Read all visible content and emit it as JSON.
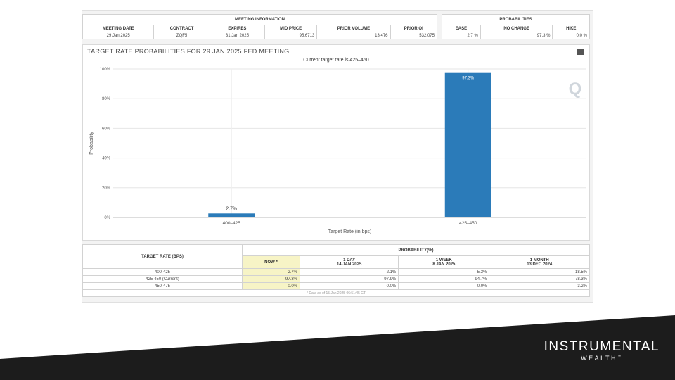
{
  "meeting_info": {
    "header": "MEETING INFORMATION",
    "columns": [
      "MEETING DATE",
      "CONTRACT",
      "EXPIRES",
      "MID PRICE",
      "PRIOR VOLUME",
      "PRIOR OI"
    ],
    "values": [
      "29 Jan 2025",
      "ZQF5",
      "31 Jan 2025",
      "95.6713",
      "13,476",
      "532,075"
    ]
  },
  "probabilities": {
    "header": "PROBABILITIES",
    "columns": [
      "EASE",
      "NO CHANGE",
      "HIKE"
    ],
    "values": [
      "2.7 %",
      "97.3 %",
      "0.0 %"
    ]
  },
  "chart_data": {
    "type": "bar",
    "title": "TARGET RATE PROBABILITIES FOR 29 JAN 2025 FED MEETING",
    "subtitle": "Current target rate is 425–450",
    "xlabel": "Target Rate (in bps)",
    "ylabel": "Probability",
    "categories": [
      "400–425",
      "425–450"
    ],
    "values": [
      2.7,
      97.3
    ],
    "data_labels": [
      "2.7%",
      "97.3%"
    ],
    "yticks": [
      "0%",
      "20%",
      "40%",
      "60%",
      "80%",
      "100%"
    ],
    "ylim": [
      0,
      100
    ],
    "grid": true,
    "bar_color": "#2b7bb9",
    "watermark": "Q"
  },
  "prob_table": {
    "col_target": "TARGET RATE (BPS)",
    "col_prob": "PROBABILITY(%)",
    "sub_headers": [
      {
        "line1": "NOW *",
        "line2": ""
      },
      {
        "line1": "1 DAY",
        "line2": "14 JAN 2025"
      },
      {
        "line1": "1 WEEK",
        "line2": "8 JAN 2025"
      },
      {
        "line1": "1 MONTH",
        "line2": "13 DEC 2024"
      }
    ],
    "rows": [
      {
        "rate": "400-425",
        "now": "2.7%",
        "day": "2.1%",
        "week": "5.3%",
        "month": "18.5%"
      },
      {
        "rate": "425-450 (Current)",
        "now": "97.3%",
        "day": "97.9%",
        "week": "94.7%",
        "month": "78.3%"
      },
      {
        "rate": "450-475",
        "now": "0.0%",
        "day": "0.0%",
        "week": "0.0%",
        "month": "3.2%"
      }
    ],
    "footnote": "* Data as of 15 Jan 2025 06:51:45 CT"
  },
  "brand": {
    "name": "INSTRUMENTAL",
    "sub": "WEALTH",
    "mark": "™"
  },
  "colors": {
    "footer_bg": "#1c1c1c",
    "now_highlight": "#f7f4c6"
  }
}
